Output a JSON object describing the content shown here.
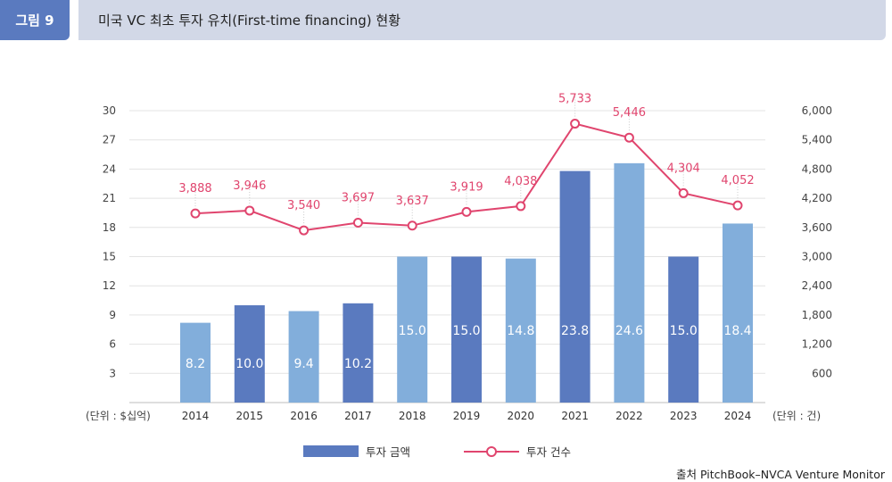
{
  "figure": {
    "label": "그림 9",
    "title": "미국 VC 최초 투자 유치(First-time financing) 현황"
  },
  "chart_data": {
    "type": "bar",
    "categories": [
      "2014",
      "2015",
      "2016",
      "2017",
      "2018",
      "2019",
      "2020",
      "2021",
      "2022",
      "2023",
      "2024"
    ],
    "series": [
      {
        "name": "투자 금액",
        "type": "bar",
        "axis": "left",
        "values": [
          8.2,
          10.0,
          9.4,
          10.2,
          15.0,
          15.0,
          14.8,
          23.8,
          24.6,
          15.0,
          18.4
        ],
        "labels": [
          "8.2",
          "10.0",
          "9.4",
          "10.2",
          "15.0",
          "15.0",
          "14.8",
          "23.8",
          "24.6",
          "15.0",
          "18.4"
        ]
      },
      {
        "name": "투자 건수",
        "type": "line",
        "axis": "right",
        "values": [
          3888,
          3946,
          3540,
          3697,
          3637,
          3919,
          4038,
          5733,
          5446,
          4304,
          4052
        ],
        "labels": [
          "3,888",
          "3,946",
          "3,540",
          "3,697",
          "3,637",
          "3,919",
          "4,038",
          "5,733",
          "5,446",
          "4,304",
          "4,052"
        ]
      }
    ],
    "bar_colors": [
      "#82aedb",
      "#5a7abf",
      "#82aedb",
      "#5a7abf",
      "#82aedb",
      "#5a7abf",
      "#82aedb",
      "#5a7abf",
      "#82aedb",
      "#5a7abf",
      "#82aedb"
    ],
    "line_color": "#e0456e",
    "left_axis": {
      "unit_label": "(단위 : $십억)",
      "range": [
        0,
        30
      ],
      "ticks": [
        "3",
        "6",
        "9",
        "12",
        "15",
        "18",
        "21",
        "24",
        "27",
        "30"
      ],
      "tick_values": [
        3,
        6,
        9,
        12,
        15,
        18,
        21,
        24,
        27,
        30
      ]
    },
    "right_axis": {
      "unit_label": "(단위 : 건)",
      "range": [
        0,
        6000
      ],
      "ticks": [
        "600",
        "1,200",
        "1,800",
        "2,400",
        "3,000",
        "3,600",
        "4,200",
        "4,800",
        "5,400",
        "6,000"
      ],
      "tick_values": [
        600,
        1200,
        1800,
        2400,
        3000,
        3600,
        4200,
        4800,
        5400,
        6000
      ]
    },
    "grid": true,
    "legend_position": "bottom-center"
  },
  "source": "출처 PitchBook–NVCA Venture Monitor"
}
